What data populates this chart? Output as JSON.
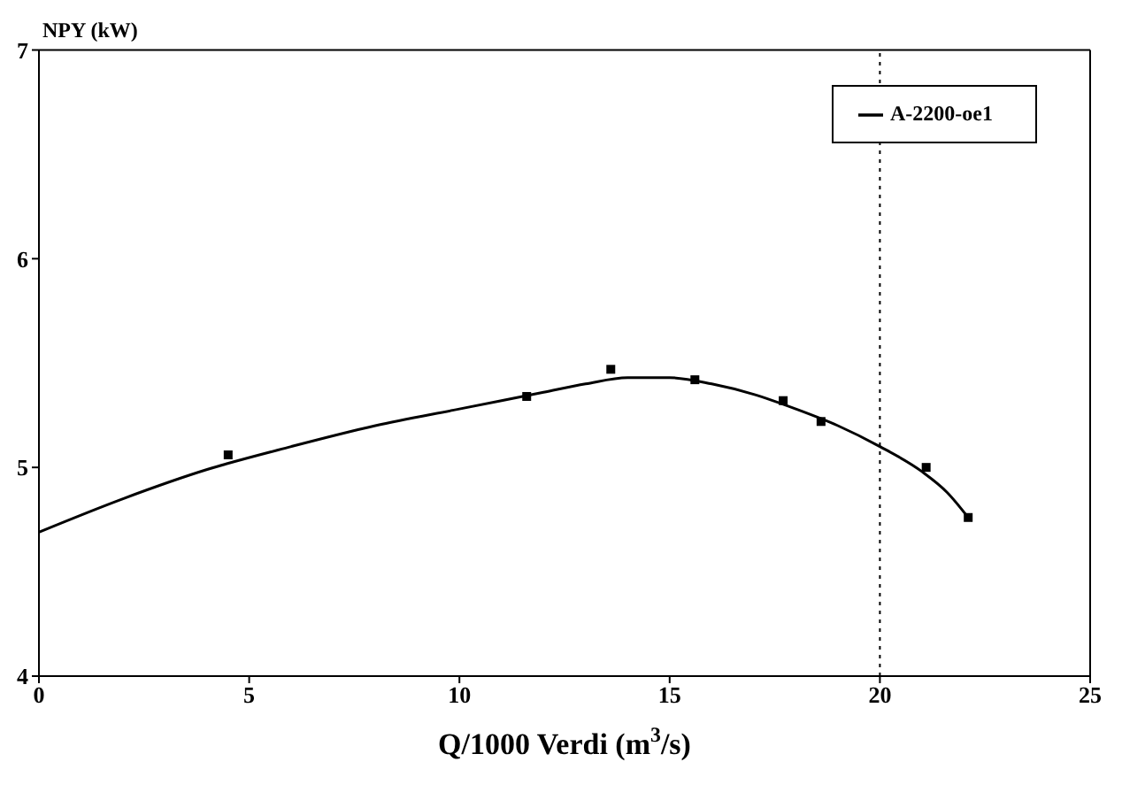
{
  "chart_data": {
    "type": "line",
    "xlabel": "Q/1000  Verdi   (m$^{3}$/s)",
    "ylabel": "NPY (kW)",
    "series": [
      {
        "name": "A-2200-oe1",
        "color": "#000000",
        "marker": "none",
        "x": [
          0,
          2,
          4,
          6,
          8,
          10,
          12,
          13,
          14,
          15,
          16,
          17,
          18,
          19,
          20,
          21,
          21.6,
          22.1
        ],
        "values": [
          4.69,
          4.85,
          4.99,
          5.1,
          5.2,
          5.28,
          5.36,
          5.4,
          5.43,
          5.43,
          5.4,
          5.35,
          5.28,
          5.2,
          5.1,
          4.98,
          4.88,
          4.76
        ]
      },
      {
        "type": "scatter",
        "color": "#000000",
        "marker": "square",
        "x": [
          4.5,
          11.6,
          13.6,
          15.6,
          17.7,
          18.6,
          21.1,
          22.1
        ],
        "values": [
          5.06,
          5.34,
          5.47,
          5.42,
          5.32,
          5.22,
          5.0,
          4.76
        ]
      }
    ],
    "xlim": [
      0,
      25
    ],
    "xticks": [
      0,
      5,
      10,
      15,
      20,
      25
    ],
    "ylim": [
      4,
      7
    ],
    "yticks": [
      4,
      5,
      6,
      7
    ],
    "ref_lines": [
      {
        "axis": "x",
        "value": 20,
        "line_style": "dotted",
        "color": "#000000"
      }
    ],
    "legend": "top right",
    "grid": false
  }
}
